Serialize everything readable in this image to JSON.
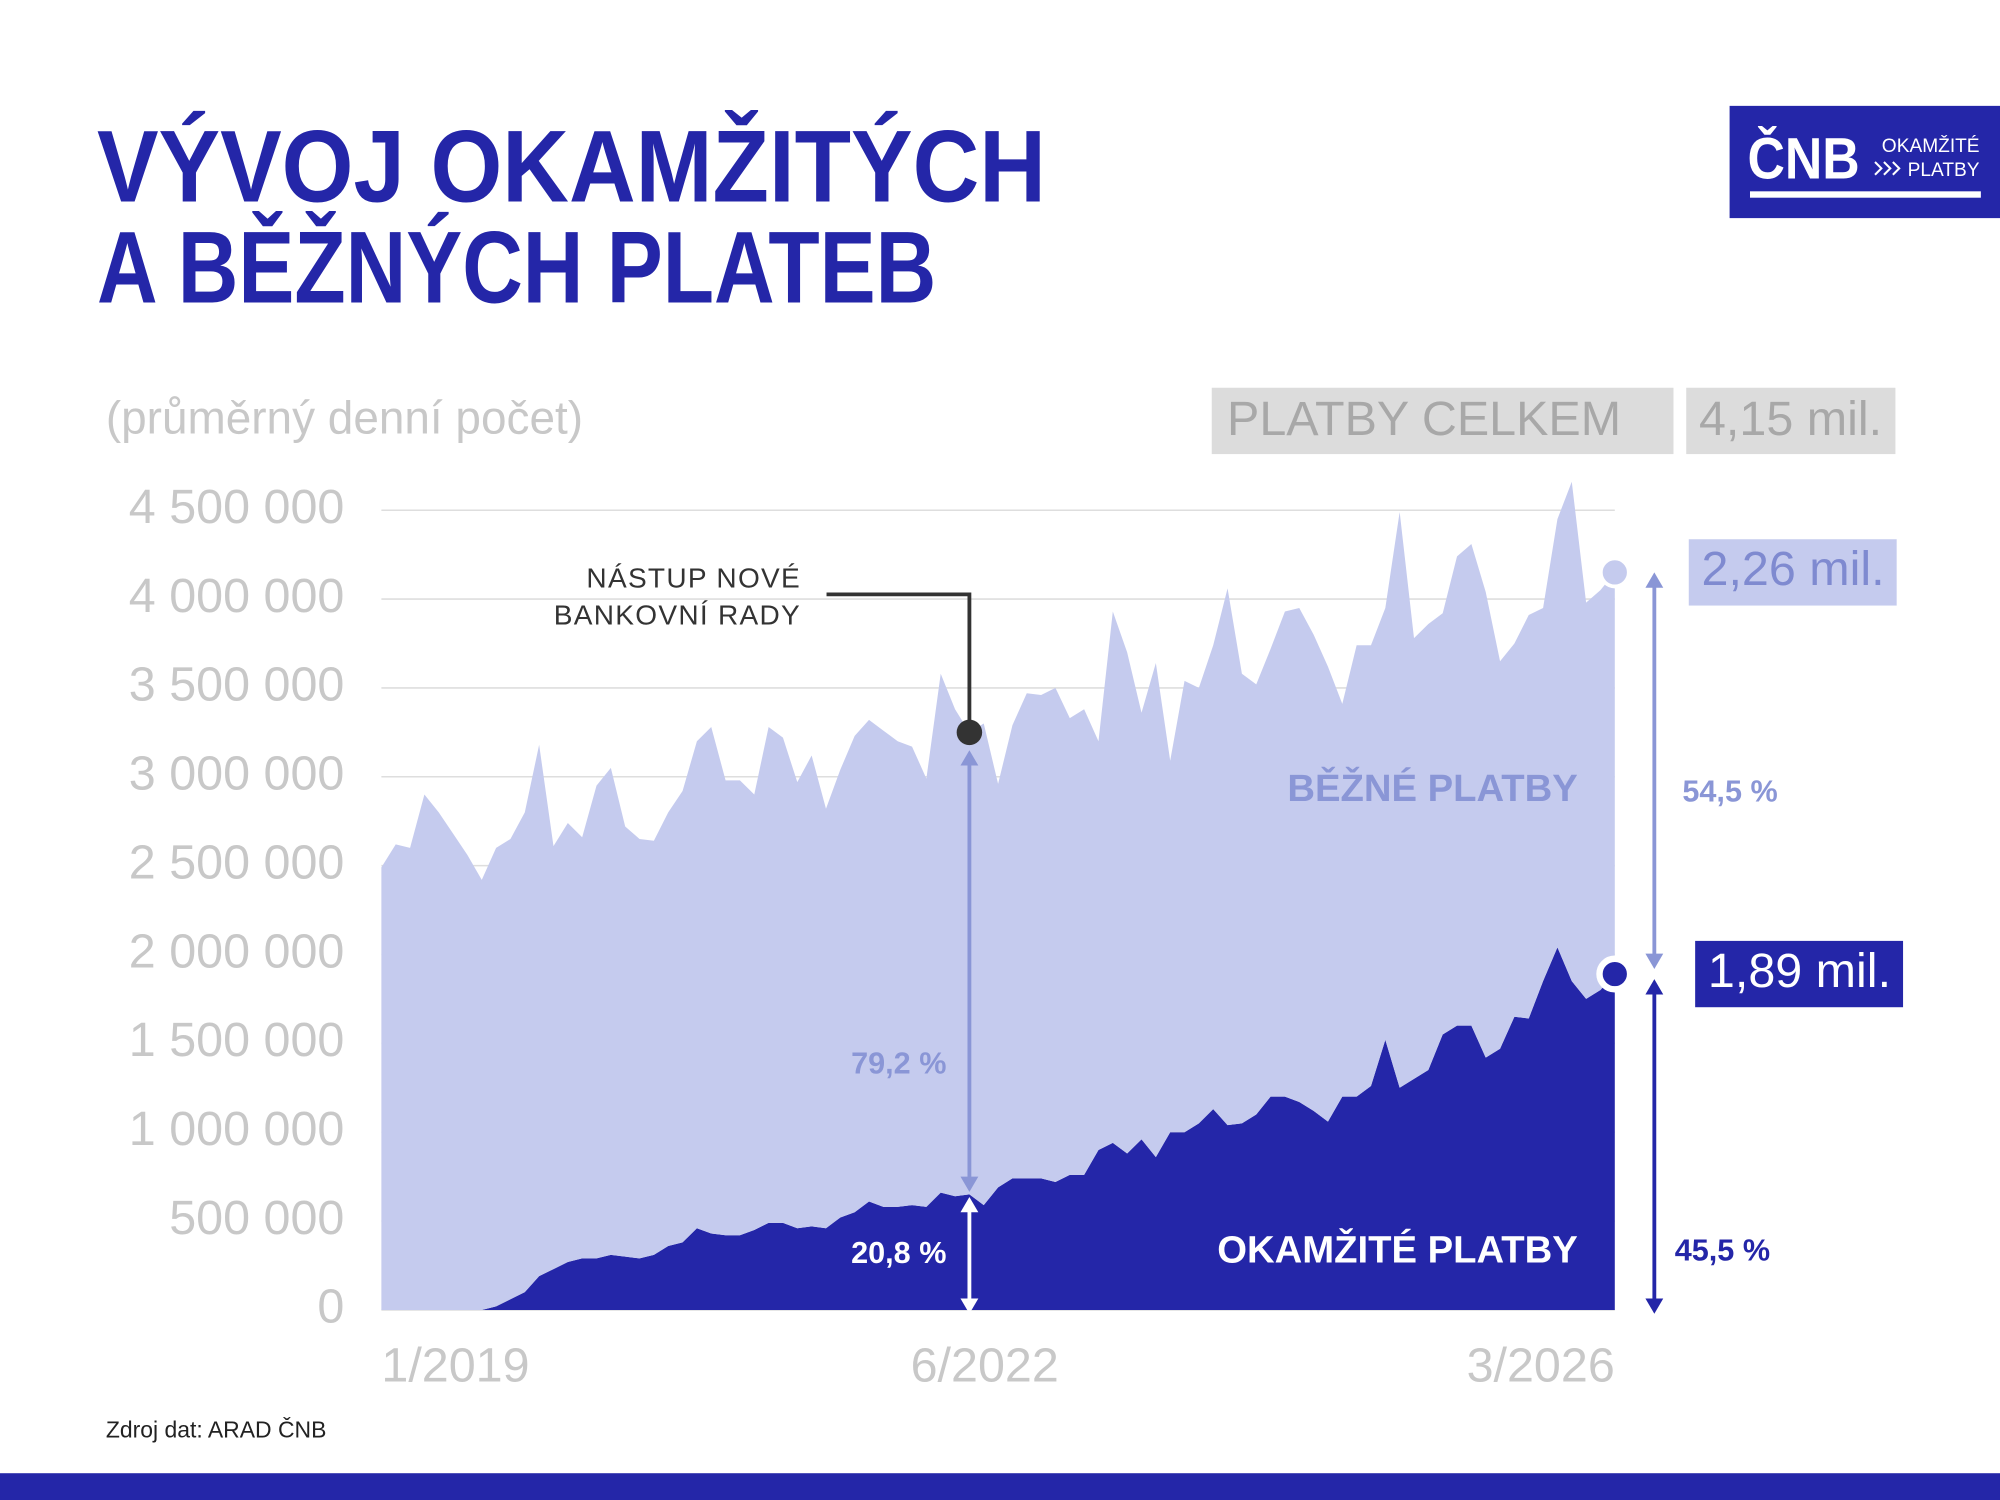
{
  "header": {
    "title": [
      "VÝVOJ OKAMŽITÝCH",
      "A BĚŽNÝCH PLATEB"
    ],
    "logo": {
      "mark": "ČNB",
      "line1": "OKAMŽITÉ",
      "line2": "PLATBY"
    }
  },
  "chart_data": {
    "type": "stacked-area",
    "y_label": "(průměrný denní počet)",
    "total": {
      "label": "PLATBY CELKEM",
      "value_label": "4,15 mil."
    },
    "categories": [
      "1/2019",
      null,
      null,
      null,
      null,
      null,
      null,
      null,
      null,
      null,
      null,
      null,
      null,
      null,
      null,
      null,
      null,
      null,
      null,
      null,
      null,
      null,
      null,
      null,
      null,
      null,
      null,
      null,
      null,
      null,
      null,
      null,
      null,
      null,
      null,
      null,
      null,
      null,
      null,
      null,
      null,
      "6/2022",
      null,
      null,
      null,
      null,
      null,
      null,
      null,
      null,
      null,
      null,
      null,
      null,
      null,
      null,
      null,
      null,
      null,
      null,
      null,
      null,
      null,
      null,
      null,
      null,
      null,
      null,
      null,
      null,
      null,
      null,
      null,
      null,
      null,
      null,
      null,
      null,
      null,
      null,
      null,
      null,
      null,
      null,
      null,
      null,
      "3/2026"
    ],
    "series": [
      {
        "name": "OKAMŽITÉ PLATBY",
        "color": "#2426a8",
        "values": [
          0,
          0,
          0,
          0,
          0,
          0,
          0,
          0,
          20000,
          60000,
          100000,
          190000,
          230000,
          270000,
          290000,
          290000,
          310000,
          300000,
          290000,
          310000,
          360000,
          380000,
          460000,
          430000,
          420000,
          420000,
          450000,
          490000,
          490000,
          460000,
          470000,
          460000,
          520000,
          550000,
          610000,
          580000,
          580000,
          590000,
          580000,
          660000,
          640000,
          650000,
          590000,
          690000,
          740000,
          740000,
          740000,
          720000,
          760000,
          760000,
          900000,
          940000,
          880000,
          960000,
          860000,
          1000000,
          1000000,
          1050000,
          1130000,
          1040000,
          1050000,
          1100000,
          1200000,
          1200000,
          1170000,
          1120000,
          1060000,
          1200000,
          1200000,
          1260000,
          1520000,
          1250000,
          1300000,
          1350000,
          1550000,
          1600000,
          1600000,
          1420000,
          1470000,
          1650000,
          1640000,
          1850000,
          2040000,
          1850000,
          1750000,
          1800000,
          1890000
        ],
        "value_labels": [
          null,
          null,
          null,
          null,
          null,
          null,
          null,
          null,
          null,
          null,
          null,
          null,
          null,
          null,
          null,
          null,
          null,
          null,
          null,
          null,
          null,
          null,
          null,
          null,
          null,
          null,
          null,
          null,
          null,
          null,
          null,
          null,
          null,
          null,
          null,
          null,
          null,
          null,
          null,
          null,
          null,
          null,
          null,
          null,
          null,
          null,
          null,
          null,
          null,
          null,
          null,
          null,
          null,
          null,
          null,
          null,
          null,
          null,
          null,
          null,
          null,
          null,
          null,
          null,
          null,
          null,
          null,
          null,
          null,
          null,
          null,
          null,
          null,
          null,
          null,
          null,
          null,
          null,
          null,
          null,
          null,
          null,
          null,
          null,
          null,
          null,
          "1,89 mil."
        ]
      },
      {
        "name": "BĚŽNÉ PLATBY",
        "color": "#c5cbee",
        "values": [
          2490000,
          2620000,
          2600000,
          2900000,
          2800000,
          2680000,
          2560000,
          2420000,
          2580000,
          2590000,
          2700000,
          2990000,
          2380000,
          2470000,
          2370000,
          2660000,
          2740000,
          2420000,
          2360000,
          2330000,
          2440000,
          2540000,
          2740000,
          2850000,
          2560000,
          2560000,
          2450000,
          2790000,
          2730000,
          2510000,
          2650000,
          2360000,
          2520000,
          2680000,
          2710000,
          2680000,
          2620000,
          2580000,
          2410000,
          2920000,
          2740000,
          2600000,
          2710000,
          2270000,
          2550000,
          2730000,
          2720000,
          2780000,
          2570000,
          2620000,
          2300000,
          2990000,
          2820000,
          2400000,
          2780000,
          2090000,
          2540000,
          2450000,
          2610000,
          3020000,
          2530000,
          2420000,
          2520000,
          2730000,
          2780000,
          2680000,
          2560000,
          2210000,
          2540000,
          2480000,
          2430000,
          3240000,
          2480000,
          2510000,
          2370000,
          2640000,
          2710000,
          2620000,
          2180000,
          2100000,
          2270000,
          2100000,
          2410000,
          2810000,
          2230000,
          2250000,
          2260000
        ],
        "value_labels": [
          null,
          null,
          null,
          null,
          null,
          null,
          null,
          null,
          null,
          null,
          null,
          null,
          null,
          null,
          null,
          null,
          null,
          null,
          null,
          null,
          null,
          null,
          null,
          null,
          null,
          null,
          null,
          null,
          null,
          null,
          null,
          null,
          null,
          null,
          null,
          null,
          null,
          null,
          null,
          null,
          null,
          null,
          null,
          null,
          null,
          null,
          null,
          null,
          null,
          null,
          null,
          null,
          null,
          null,
          null,
          null,
          null,
          null,
          null,
          null,
          null,
          null,
          null,
          null,
          null,
          null,
          null,
          null,
          null,
          null,
          null,
          null,
          null,
          null,
          null,
          null,
          null,
          null,
          null,
          null,
          null,
          null,
          null,
          null,
          null,
          null,
          "2,26 mil."
        ]
      }
    ],
    "ylim": [
      0,
      4500000
    ],
    "yticks": [
      {
        "value": 0,
        "label": "0"
      },
      {
        "value": 500000,
        "label": "500 000"
      },
      {
        "value": 1000000,
        "label": "1 000 000"
      },
      {
        "value": 1500000,
        "label": "1 500 000"
      },
      {
        "value": 2000000,
        "label": "2 000 000"
      },
      {
        "value": 2500000,
        "label": "2 500 000"
      },
      {
        "value": 3000000,
        "label": "3 000 000"
      },
      {
        "value": 3500000,
        "label": "3 500 000"
      },
      {
        "value": 4000000,
        "label": "4 000 000"
      },
      {
        "value": 4500000,
        "label": "4 500 000"
      }
    ],
    "grid": true,
    "annotations": {
      "event": [
        "NÁSTUP NOVÉ",
        "BANKOVNÍ RADY"
      ],
      "event_shares": [
        "20,8 %",
        "79,2 %"
      ],
      "end_shares": [
        "45,5 %",
        "54,5 %"
      ]
    }
  },
  "footer": {
    "source": "Zdroj dat: ARAD ČNB"
  }
}
